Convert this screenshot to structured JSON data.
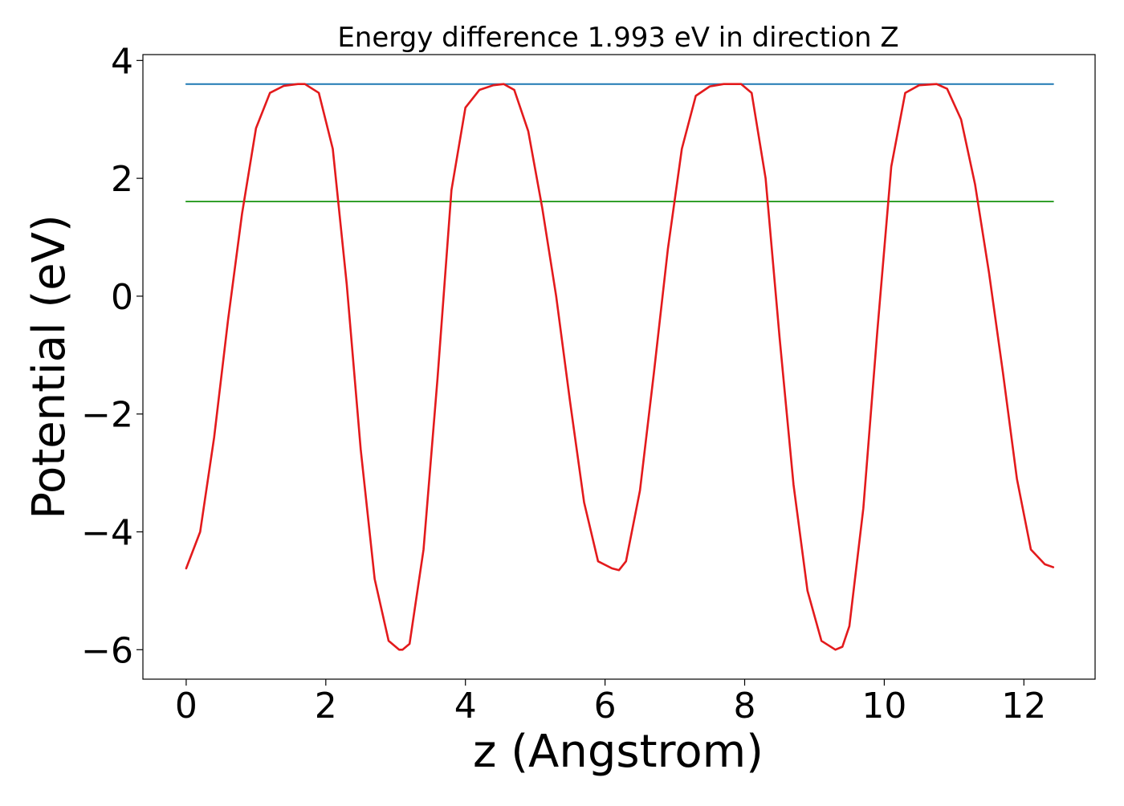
{
  "chart_data": {
    "type": "line",
    "title": "Energy difference 1.993 eV in direction Z",
    "xlabel": "z (Angstrom)",
    "ylabel": "Potential (eV)",
    "xlim": [
      -0.62,
      13.02
    ],
    "ylim": [
      -6.5,
      4.1
    ],
    "xticks": [
      0,
      2,
      4,
      6,
      8,
      10,
      12
    ],
    "yticks": [
      -6,
      -4,
      -2,
      0,
      2,
      4
    ],
    "grid": false,
    "colors": {
      "potential": "#e31a1c",
      "upper_level": "#1f78b4",
      "lower_level": "#33a02c"
    },
    "series": [
      {
        "name": "potential",
        "color": "#e31a1c",
        "x": [
          0.0,
          0.2,
          0.4,
          0.6,
          0.8,
          1.0,
          1.2,
          1.4,
          1.6,
          1.7,
          1.9,
          2.1,
          2.3,
          2.5,
          2.7,
          2.9,
          3.05,
          3.1,
          3.2,
          3.4,
          3.6,
          3.8,
          4.0,
          4.2,
          4.4,
          4.55,
          4.7,
          4.9,
          5.1,
          5.3,
          5.5,
          5.7,
          5.9,
          6.1,
          6.2,
          6.3,
          6.5,
          6.7,
          6.9,
          7.1,
          7.3,
          7.5,
          7.7,
          7.95,
          8.1,
          8.3,
          8.5,
          8.7,
          8.9,
          9.1,
          9.3,
          9.4,
          9.5,
          9.7,
          9.9,
          10.1,
          10.3,
          10.5,
          10.75,
          10.9,
          11.1,
          11.3,
          11.5,
          11.7,
          11.9,
          12.1,
          12.3,
          12.42
        ],
        "y": [
          -4.62,
          -4.0,
          -2.4,
          -0.4,
          1.4,
          2.85,
          3.45,
          3.57,
          3.6,
          3.6,
          3.45,
          2.5,
          0.2,
          -2.6,
          -4.8,
          -5.85,
          -6.0,
          -6.0,
          -5.9,
          -4.3,
          -1.4,
          1.8,
          3.2,
          3.5,
          3.58,
          3.6,
          3.5,
          2.8,
          1.5,
          0.0,
          -1.8,
          -3.5,
          -4.5,
          -4.62,
          -4.65,
          -4.5,
          -3.3,
          -1.3,
          0.8,
          2.5,
          3.4,
          3.56,
          3.6,
          3.6,
          3.45,
          2.0,
          -0.7,
          -3.2,
          -5.0,
          -5.85,
          -6.0,
          -5.95,
          -5.6,
          -3.6,
          -0.6,
          2.2,
          3.45,
          3.58,
          3.6,
          3.52,
          3.0,
          1.9,
          0.4,
          -1.3,
          -3.1,
          -4.3,
          -4.55,
          -4.6
        ]
      },
      {
        "name": "upper_level",
        "color": "#1f78b4",
        "x": [
          0.0,
          12.42
        ],
        "y": [
          3.6,
          3.6
        ]
      },
      {
        "name": "lower_level",
        "color": "#33a02c",
        "x": [
          0.0,
          12.42
        ],
        "y": [
          1.607,
          1.607
        ]
      }
    ]
  }
}
